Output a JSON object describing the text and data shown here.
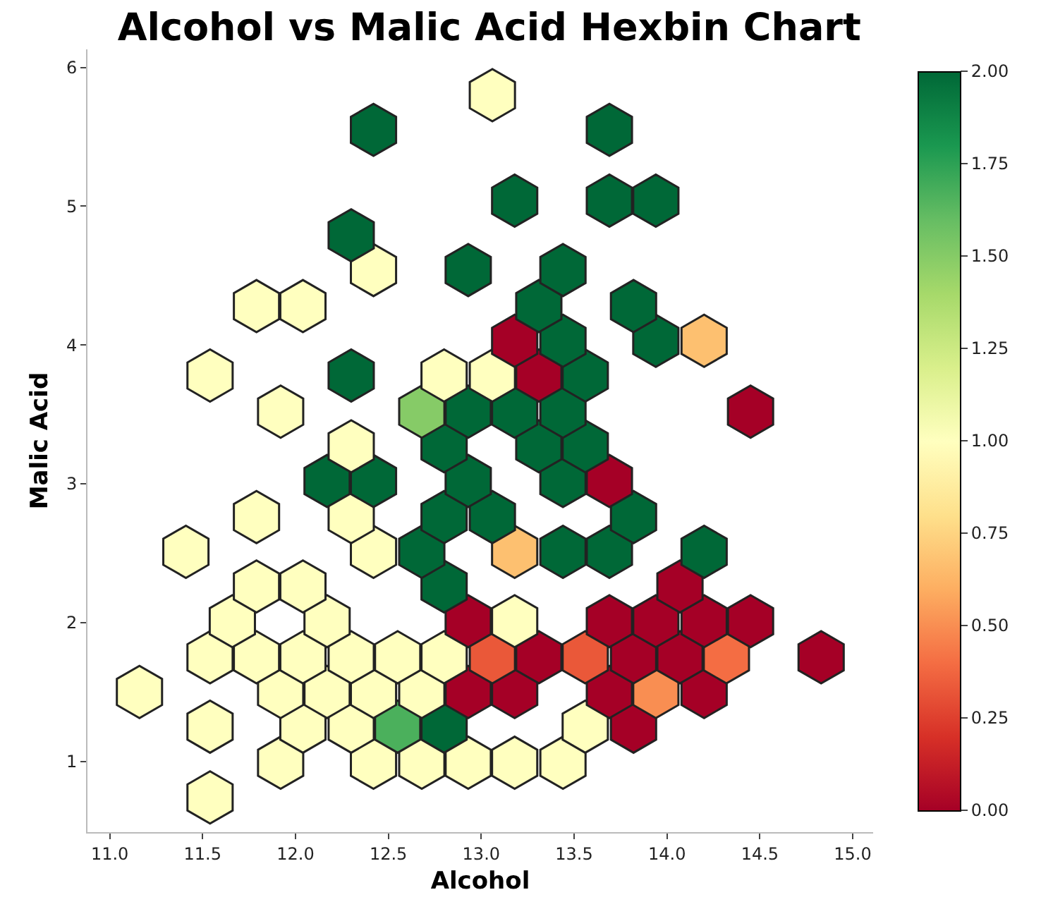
{
  "chart_data": {
    "type": "scatter",
    "title": "Alcohol vs Malic Acid Hexbin Chart",
    "xlabel": "Alcohol",
    "ylabel": "Malic Acid",
    "x": [
      11.54,
      11.92,
      12.42,
      12.68,
      12.93,
      13.18,
      13.44,
      11.54,
      12.04,
      12.3,
      12.55,
      12.8,
      13.56,
      13.82,
      11.16,
      11.92,
      12.17,
      12.42,
      12.68,
      12.93,
      13.18,
      13.69,
      13.94,
      14.2,
      11.54,
      11.79,
      12.04,
      12.3,
      12.55,
      12.8,
      13.06,
      13.31,
      13.56,
      13.82,
      14.07,
      14.32,
      14.83,
      11.66,
      12.17,
      12.93,
      13.18,
      13.69,
      13.94,
      14.2,
      14.45,
      11.79,
      12.04,
      12.8,
      14.07,
      11.41,
      12.42,
      12.68,
      13.18,
      13.44,
      13.69,
      14.2,
      11.79,
      12.3,
      12.8,
      13.06,
      13.82,
      12.17,
      12.42,
      12.93,
      13.44,
      13.69,
      12.3,
      12.8,
      13.31,
      13.56,
      11.92,
      12.68,
      12.93,
      13.18,
      13.44,
      14.45,
      11.54,
      12.3,
      12.8,
      13.06,
      13.31,
      13.56,
      13.18,
      13.44,
      13.94,
      14.2,
      11.79,
      12.04,
      13.31,
      13.82,
      12.42,
      12.93,
      13.44,
      12.3,
      13.18,
      13.69,
      13.94,
      12.42,
      13.69,
      13.06
    ],
    "values": [
      0.74,
      0.99,
      0.99,
      0.99,
      0.99,
      0.99,
      0.99,
      1.25,
      1.25,
      1.25,
      1.25,
      1.25,
      1.25,
      1.25,
      1.5,
      1.5,
      1.5,
      1.5,
      1.5,
      1.5,
      1.5,
      1.5,
      1.5,
      1.5,
      1.75,
      1.75,
      1.75,
      1.75,
      1.75,
      1.75,
      1.75,
      1.75,
      1.75,
      1.75,
      1.75,
      1.75,
      1.75,
      2.01,
      2.01,
      2.01,
      2.01,
      2.01,
      2.01,
      2.01,
      2.01,
      2.26,
      2.26,
      2.26,
      2.26,
      2.51,
      2.51,
      2.51,
      2.51,
      2.51,
      2.51,
      2.51,
      2.76,
      2.76,
      2.76,
      2.76,
      2.76,
      3.02,
      3.02,
      3.02,
      3.02,
      3.02,
      3.27,
      3.27,
      3.27,
      3.27,
      3.52,
      3.52,
      3.52,
      3.52,
      3.52,
      3.52,
      3.78,
      3.78,
      3.78,
      3.78,
      3.78,
      3.78,
      4.03,
      4.03,
      4.03,
      4.03,
      4.28,
      4.28,
      4.28,
      4.28,
      4.54,
      4.54,
      4.54,
      4.79,
      5.04,
      5.04,
      5.04,
      5.55,
      5.55,
      5.8
    ],
    "cvalues": [
      1,
      1,
      1,
      1,
      1,
      1,
      1,
      1,
      1,
      1,
      1.67,
      2,
      1,
      0,
      1,
      1,
      1,
      1,
      1,
      0,
      0,
      0,
      0.5,
      0,
      1,
      1,
      1,
      1,
      1,
      1,
      0.33,
      0,
      0.33,
      0,
      0,
      0.4,
      0,
      1,
      1,
      0,
      1,
      0,
      0,
      0,
      0,
      1,
      1,
      2,
      0,
      1,
      1,
      2,
      0.67,
      2,
      2,
      2,
      1,
      1,
      2,
      2,
      2,
      2,
      2,
      2,
      2,
      0,
      1,
      2,
      2,
      2,
      1,
      1.5,
      2,
      2,
      2,
      0,
      1,
      2,
      1,
      1,
      0,
      2,
      0,
      2,
      2,
      0.67,
      1,
      1,
      2,
      2,
      1,
      2,
      2,
      2,
      2,
      2,
      2,
      2,
      2,
      1
    ],
    "xlim": [
      10.88,
      15.11
    ],
    "xticks": [
      {
        "value": 11,
        "label": "11.0"
      },
      {
        "value": 11.5,
        "label": "11.5"
      },
      {
        "value": 12,
        "label": "12.0"
      },
      {
        "value": 12.5,
        "label": "12.5"
      },
      {
        "value": 13,
        "label": "13.0"
      },
      {
        "value": 13.5,
        "label": "13.5"
      },
      {
        "value": 14,
        "label": "14.0"
      },
      {
        "value": 14.5,
        "label": "14.5"
      },
      {
        "value": 15,
        "label": "15.0"
      }
    ],
    "ylim": [
      0.49,
      6.13
    ],
    "yticks": [
      1,
      2,
      3,
      4,
      5,
      6
    ],
    "clim": [
      0,
      2
    ],
    "cticks": [
      {
        "value": 0,
        "label": "0.00"
      },
      {
        "value": 0.25,
        "label": "0.25"
      },
      {
        "value": 0.5,
        "label": "0.50"
      },
      {
        "value": 0.75,
        "label": "0.75"
      },
      {
        "value": 1,
        "label": "1.00"
      },
      {
        "value": 1.25,
        "label": "1.25"
      },
      {
        "value": 1.5,
        "label": "1.50"
      },
      {
        "value": 1.75,
        "label": "1.75"
      },
      {
        "value": 2,
        "label": "2.00"
      }
    ]
  }
}
